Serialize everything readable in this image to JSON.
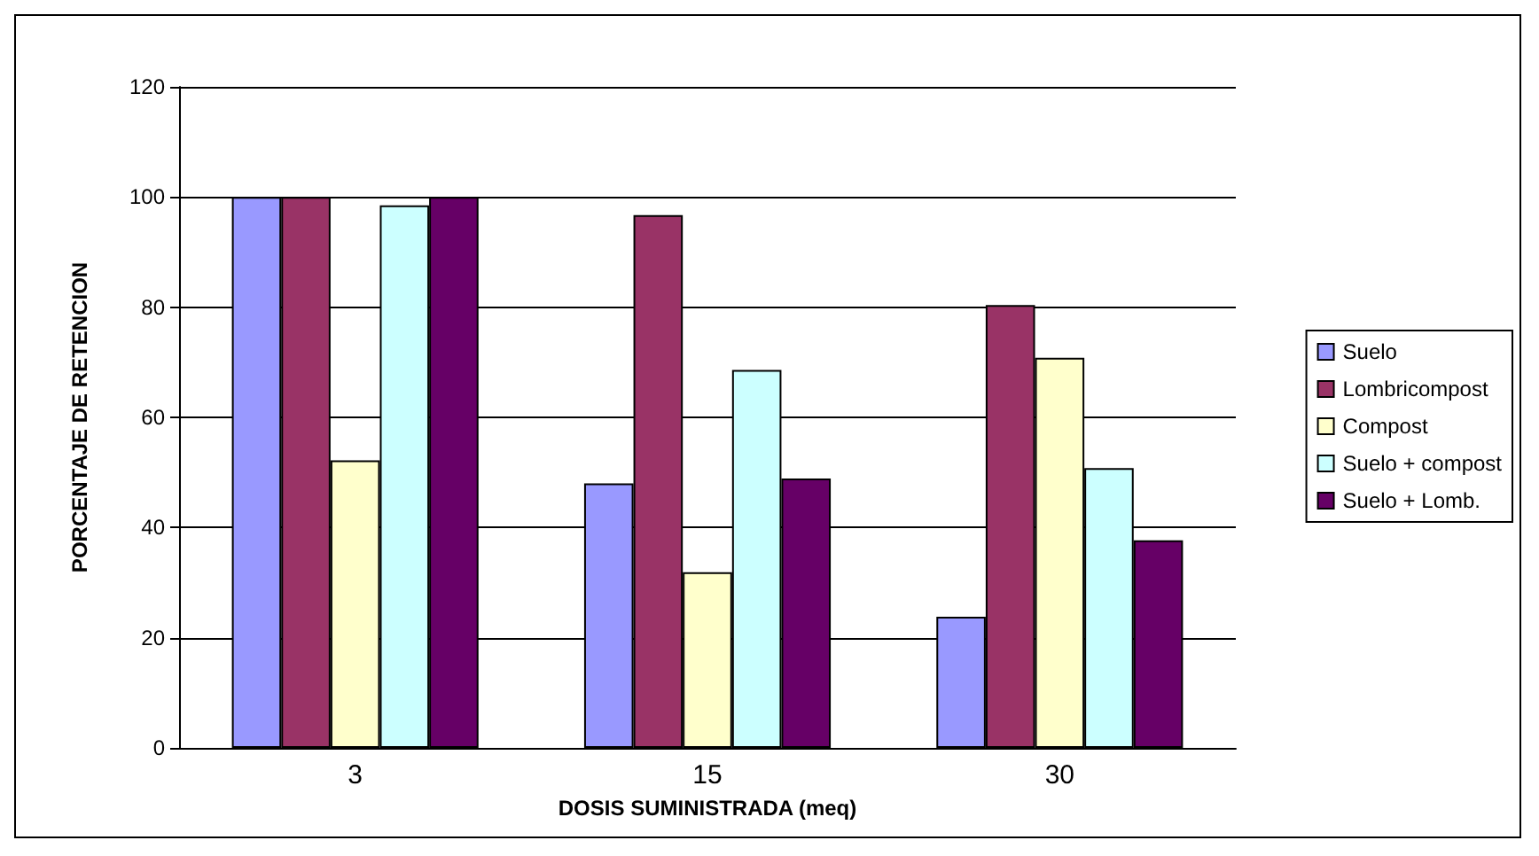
{
  "chart_data": {
    "type": "bar",
    "xlabel": "DOSIS SUMINISTRADA (meq)",
    "ylabel": "PORCENTAJE DE RETENCION",
    "categories": [
      "3",
      "15",
      "30"
    ],
    "series": [
      {
        "name": "Suelo",
        "color": "#9999ff",
        "values": [
          100,
          48,
          23.8
        ]
      },
      {
        "name": "Lombricompost",
        "color": "#993366",
        "values": [
          100,
          96.7,
          80.4
        ]
      },
      {
        "name": "Compost",
        "color": "#ffffcc",
        "values": [
          52.2,
          31.9,
          70.8
        ]
      },
      {
        "name": "Suelo + compost",
        "color": "#ccffff",
        "values": [
          98.5,
          68.6,
          50.8
        ]
      },
      {
        "name": "Suelo + Lomb.",
        "color": "#660066",
        "values": [
          100,
          48.9,
          37.7
        ]
      }
    ],
    "ylim": [
      0,
      120
    ],
    "yticks": [
      0,
      20,
      40,
      60,
      80,
      100,
      120
    ],
    "grid": "y",
    "legend": "right"
  }
}
